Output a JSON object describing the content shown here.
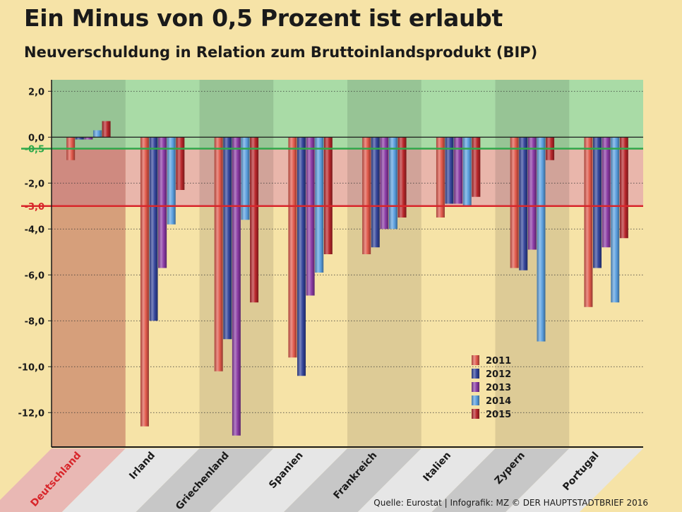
{
  "title": "Ein Minus von 0,5 Prozent ist erlaubt",
  "subtitle": "Neuverschuldung in Relation zum Bruttoinlandsprodukt (BIP)",
  "source": "Quelle: Eurostat  |  Infografik: MZ © DER HAUPTSTADTBRIEF 2016",
  "colors": {
    "background": "#f6e3a7",
    "zone_green": "#a9dba6",
    "zone_red": "#e9b6ab",
    "deutschland_col": "#efb289",
    "line_green": "#2fa84a",
    "line_red": "#d8262b",
    "series": [
      "#e0584a",
      "#33449a",
      "#8a3aa4",
      "#5b9fdf",
      "#b8262a"
    ]
  },
  "chart_data": {
    "type": "bar",
    "categories": [
      "Deutschland",
      "Irland",
      "Griechenland",
      "Spanien",
      "Frankreich",
      "Italien",
      "Zypern",
      "Portugal"
    ],
    "series": [
      {
        "name": "2011",
        "values": [
          -1.0,
          -12.6,
          -10.2,
          -9.6,
          -5.1,
          -3.5,
          -5.7,
          -7.4
        ]
      },
      {
        "name": "2012",
        "values": [
          -0.1,
          -8.0,
          -8.8,
          -10.4,
          -4.8,
          -2.9,
          -5.8,
          -5.7
        ]
      },
      {
        "name": "2013",
        "values": [
          -0.1,
          -5.7,
          -13.0,
          -6.9,
          -4.0,
          -2.9,
          -4.9,
          -4.8
        ]
      },
      {
        "name": "2014",
        "values": [
          0.3,
          -3.8,
          -3.6,
          -5.9,
          -4.0,
          -3.0,
          -8.9,
          -7.2
        ]
      },
      {
        "name": "2015",
        "values": [
          0.7,
          -2.3,
          -7.2,
          -5.1,
          -3.5,
          -2.6,
          -1.0,
          -4.4
        ]
      }
    ],
    "ylim": [
      -13.5,
      2.5
    ],
    "yticks": [
      {
        "value": 2.0,
        "label": "2,0"
      },
      {
        "value": 0.0,
        "label": "0,0"
      },
      {
        "value": -2.0,
        "label": "-2,0"
      },
      {
        "value": -4.0,
        "label": "-4,0"
      },
      {
        "value": -6.0,
        "label": "-6,0"
      },
      {
        "value": -8.0,
        "label": "-8,0"
      },
      {
        "value": -10.0,
        "label": "-10,0"
      },
      {
        "value": -12.0,
        "label": "-12,0"
      }
    ],
    "reference_lines": [
      {
        "value": -0.5,
        "label": "-0,5",
        "color": "#2fa84a"
      },
      {
        "value": -3.0,
        "label": "-3,0",
        "color": "#d8262b"
      }
    ],
    "highlight_category": "Deutschland",
    "legend_position": "bottom-right inside plot",
    "grid": "dotted horizontal"
  }
}
